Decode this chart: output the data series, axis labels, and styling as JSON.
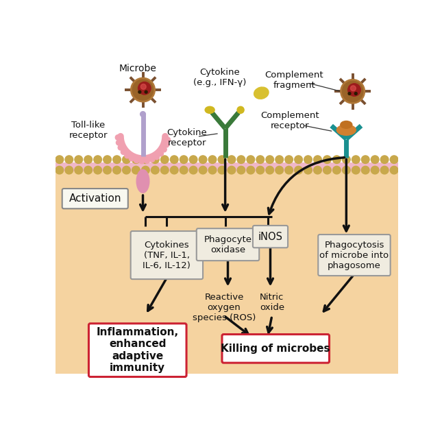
{
  "bg_top": "#ffffff",
  "bg_bottom": "#f5d3a0",
  "membrane_gold": "#c8a84b",
  "membrane_pink": "#f0b8c8",
  "box_fc": "#f0ece0",
  "box_border": "#999999",
  "red_border": "#cc2233",
  "arrow_color": "#111111",
  "labels": {
    "microbe": "Microbe",
    "toll_like": "Toll-like\nreceptor",
    "cytokine_label": "Cytokine\n(e.g., IFN-γ)",
    "cytokine_receptor": "Cytokine\nreceptor",
    "complement_fragment": "Complement\nfragment",
    "complement_receptor": "Complement\nreceptor",
    "activation": "Activation",
    "cytokines_box": "Cytokines\n(TNF, IL-1,\nIL-6, IL-12)",
    "phagocyte_oxidase": "Phagocyte\noxidase",
    "inos": "iNOS",
    "phagocytosis": "Phagocytosis\nof microbe into\nphagosome",
    "ros": "Reactive\noxygen\nspecies (ROS)",
    "nitric_oxide": "Nitric\noxide",
    "inflammation": "Inflammation,\nenhanced\nadaptive\nimmunity",
    "killing": "Killing of microbes"
  }
}
